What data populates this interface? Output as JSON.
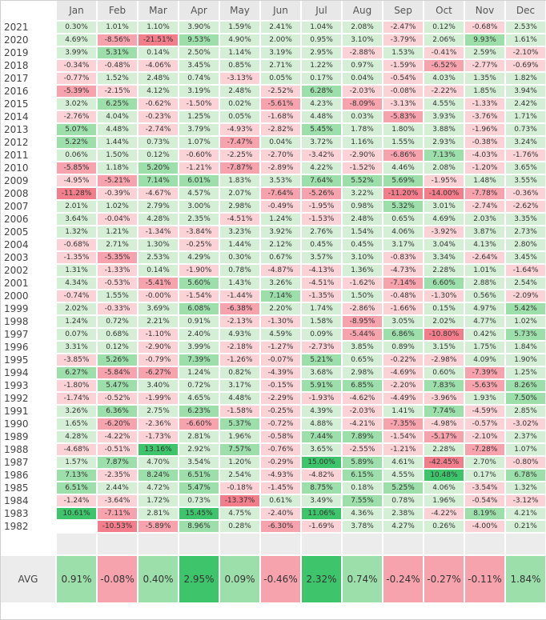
{
  "months": [
    "Jan",
    "Feb",
    "Mar",
    "Apr",
    "May",
    "Jun",
    "Jul",
    "Aug",
    "Sep",
    "Oct",
    "Nov",
    "Dec"
  ],
  "rows": [
    {
      "year": "2021",
      "values": [
        0.3,
        1.01,
        1.1,
        3.9,
        1.59,
        2.41,
        1.04,
        2.08,
        -2.47,
        0.12,
        -0.68,
        2.53
      ]
    },
    {
      "year": "2020",
      "values": [
        4.69,
        -8.56,
        -21.51,
        9.53,
        4.9,
        2.0,
        0.95,
        3.1,
        -3.79,
        2.06,
        9.93,
        1.61
      ]
    },
    {
      "year": "2019",
      "values": [
        3.99,
        5.31,
        0.14,
        2.5,
        1.14,
        3.19,
        2.95,
        -2.88,
        1.53,
        -0.41,
        2.59,
        -2.1
      ]
    },
    {
      "year": "2018",
      "values": [
        -0.34,
        -0.48,
        -4.06,
        3.45,
        0.85,
        2.71,
        1.22,
        0.97,
        -1.59,
        -6.52,
        -2.77,
        -0.69
      ]
    },
    {
      "year": "2017",
      "values": [
        -0.77,
        1.52,
        2.48,
        0.74,
        -3.13,
        0.05,
        0.17,
        0.04,
        -0.54,
        4.03,
        1.35,
        1.82
      ]
    },
    {
      "year": "2016",
      "values": [
        -5.39,
        -2.15,
        4.12,
        3.19,
        2.48,
        -2.52,
        6.28,
        -2.03,
        -0.08,
        -2.22,
        1.85,
        3.94
      ]
    },
    {
      "year": "2015",
      "values": [
        3.02,
        6.25,
        -0.62,
        -1.5,
        0.02,
        -5.61,
        4.23,
        -8.09,
        -3.13,
        4.55,
        -1.33,
        2.42
      ]
    },
    {
      "year": "2014",
      "values": [
        -2.76,
        4.04,
        -0.23,
        1.25,
        0.05,
        -1.68,
        4.48,
        0.03,
        -5.83,
        3.93,
        -3.76,
        1.71
      ]
    },
    {
      "year": "2013",
      "values": [
        5.07,
        4.48,
        -2.74,
        3.79,
        -4.93,
        -2.82,
        5.45,
        1.78,
        1.8,
        3.88,
        -1.96,
        0.73
      ]
    },
    {
      "year": "2012",
      "values": [
        5.22,
        1.44,
        0.73,
        1.07,
        -7.47,
        0.04,
        3.72,
        1.16,
        1.55,
        2.93,
        -0.38,
        3.24
      ]
    },
    {
      "year": "2011",
      "values": [
        0.06,
        1.5,
        0.12,
        -0.6,
        -2.25,
        -2.7,
        -3.42,
        -2.9,
        -6.86,
        7.13,
        -4.03,
        -1.76
      ]
    },
    {
      "year": "2010",
      "values": [
        -5.85,
        1.18,
        5.2,
        -1.21,
        -7.87,
        -2.89,
        4.22,
        -1.52,
        4.46,
        2.08,
        -1.2,
        3.65
      ]
    },
    {
      "year": "2009",
      "values": [
        -4.95,
        -5.21,
        7.14,
        6.01,
        1.83,
        3.53,
        7.64,
        5.52,
        5.69,
        -1.95,
        1.48,
        3.55
      ]
    },
    {
      "year": "2008",
      "values": [
        -11.28,
        -0.39,
        -4.67,
        4.57,
        2.07,
        -7.64,
        -5.26,
        3.22,
        -11.2,
        -14.0,
        -7.78,
        -0.36
      ]
    },
    {
      "year": "2007",
      "values": [
        2.01,
        1.02,
        2.79,
        3.0,
        2.98,
        -0.49,
        -1.95,
        0.98,
        5.32,
        3.01,
        -2.74,
        -2.62
      ]
    },
    {
      "year": "2006",
      "values": [
        3.64,
        -0.04,
        4.28,
        2.35,
        -4.51,
        1.24,
        -1.53,
        2.48,
        0.65,
        4.69,
        2.03,
        3.35
      ]
    },
    {
      "year": "2005",
      "values": [
        1.32,
        1.21,
        -1.34,
        -3.84,
        3.23,
        3.92,
        2.76,
        1.54,
        4.06,
        -3.92,
        3.87,
        2.73
      ]
    },
    {
      "year": "2004",
      "values": [
        -0.68,
        2.71,
        1.3,
        -0.25,
        1.44,
        2.12,
        0.45,
        0.45,
        3.17,
        3.04,
        4.13,
        2.8
      ]
    },
    {
      "year": "2003",
      "values": [
        -1.35,
        -5.35,
        2.53,
        4.29,
        0.3,
        0.67,
        3.57,
        3.1,
        -0.83,
        3.34,
        -2.64,
        3.45
      ]
    },
    {
      "year": "2002",
      "values": [
        1.31,
        -1.33,
        0.14,
        -1.9,
        0.78,
        -4.87,
        -4.13,
        1.36,
        -4.73,
        2.28,
        1.01,
        -1.64
      ]
    },
    {
      "year": "2001",
      "values": [
        4.34,
        -0.53,
        -5.41,
        5.6,
        1.43,
        3.26,
        -4.51,
        -1.62,
        -7.14,
        6.6,
        2.88,
        2.54
      ]
    },
    {
      "year": "2000",
      "values": [
        -0.74,
        1.55,
        -0.0,
        -1.54,
        -1.44,
        7.14,
        -1.35,
        1.5,
        -0.48,
        -1.3,
        0.56,
        -2.09
      ]
    },
    {
      "year": "1999",
      "values": [
        2.02,
        -0.33,
        3.69,
        6.08,
        -6.38,
        2.2,
        1.74,
        -2.86,
        -1.66,
        0.15,
        4.97,
        5.42
      ]
    },
    {
      "year": "1998",
      "values": [
        1.24,
        0.72,
        2.21,
        0.91,
        -2.13,
        -1.3,
        1.58,
        -8.95,
        3.05,
        2.02,
        4.77,
        1.02
      ]
    },
    {
      "year": "1997",
      "values": [
        0.07,
        0.68,
        -1.1,
        2.4,
        4.93,
        4.59,
        0.09,
        -5.44,
        6.86,
        -10.8,
        0.42,
        5.73
      ]
    },
    {
      "year": "1996",
      "values": [
        3.31,
        0.12,
        -2.9,
        3.99,
        -2.18,
        -1.27,
        -2.73,
        3.85,
        0.89,
        3.15,
        1.75,
        1.84
      ]
    },
    {
      "year": "1995",
      "values": [
        -3.85,
        5.26,
        -0.79,
        7.39,
        -1.26,
        -0.07,
        5.21,
        0.65,
        -0.22,
        -2.98,
        4.09,
        1.9
      ]
    },
    {
      "year": "1994",
      "values": [
        6.27,
        -5.84,
        -6.27,
        1.24,
        0.82,
        -4.39,
        3.68,
        2.98,
        -4.69,
        0.6,
        -7.39,
        1.25
      ]
    },
    {
      "year": "1993",
      "values": [
        -1.8,
        5.47,
        3.4,
        0.72,
        3.17,
        -0.15,
        5.91,
        6.85,
        -2.2,
        7.83,
        -5.63,
        8.26
      ]
    },
    {
      "year": "1992",
      "values": [
        -1.74,
        -0.52,
        -1.99,
        4.65,
        4.48,
        -2.29,
        -1.93,
        -4.62,
        -4.49,
        -3.96,
        1.93,
        7.5
      ]
    },
    {
      "year": "1991",
      "values": [
        3.26,
        6.36,
        2.75,
        6.23,
        -1.58,
        -0.25,
        4.39,
        -2.03,
        1.41,
        7.74,
        -4.59,
        2.85
      ]
    },
    {
      "year": "1990",
      "values": [
        1.65,
        -6.2,
        -2.36,
        -6.6,
        5.37,
        -0.72,
        4.88,
        -4.21,
        -7.35,
        -4.98,
        -0.57,
        -3.02
      ]
    },
    {
      "year": "1989",
      "values": [
        4.28,
        -4.22,
        -1.73,
        2.81,
        1.96,
        -0.58,
        7.44,
        7.89,
        -1.54,
        -5.17,
        -2.1,
        2.37
      ]
    },
    {
      "year": "1988",
      "values": [
        -4.68,
        -0.51,
        13.16,
        2.92,
        7.57,
        -0.76,
        3.65,
        -2.55,
        -1.21,
        2.28,
        -7.28,
        1.07
      ]
    },
    {
      "year": "1987",
      "values": [
        1.57,
        7.87,
        4.7,
        3.54,
        1.2,
        -0.29,
        15.0,
        5.89,
        4.61,
        -42.45,
        2.7,
        -0.8
      ]
    },
    {
      "year": "1986",
      "values": [
        7.13,
        -2.35,
        8.24,
        6.51,
        2.54,
        -4.93,
        -4.82,
        6.15,
        4.55,
        10.48,
        0.17,
        6.78
      ]
    },
    {
      "year": "1985",
      "values": [
        6.51,
        2.44,
        4.72,
        5.47,
        -0.18,
        -1.45,
        8.75,
        0.18,
        5.25,
        4.06,
        -3.54,
        1.32
      ]
    },
    {
      "year": "1984",
      "values": [
        -1.24,
        -3.64,
        1.72,
        0.73,
        -13.37,
        0.61,
        3.49,
        7.55,
        0.78,
        1.96,
        -0.54,
        -3.12
      ]
    },
    {
      "year": "1983",
      "values": [
        10.61,
        -7.11,
        2.81,
        15.45,
        4.75,
        -2.4,
        11.06,
        4.36,
        2.38,
        -4.22,
        8.19,
        4.21
      ]
    },
    {
      "year": "1982",
      "values": [
        null,
        -10.53,
        -5.89,
        8.96,
        0.28,
        -6.3,
        -1.69,
        3.78,
        4.27,
        0.26,
        -4.0,
        0.21
      ]
    }
  ],
  "avg": {
    "label": "AVG",
    "values": [
      0.91,
      -0.08,
      0.4,
      2.95,
      0.09,
      -0.46,
      2.32,
      0.74,
      -0.24,
      -0.27,
      -0.11,
      1.84
    ]
  },
  "colors": {
    "pos_light": "#d4efd6",
    "pos_mid": "#9ddfaa",
    "pos_strong": "#3ec46a",
    "neg_light": "#fbd3d7",
    "neg_mid": "#f7a3ad",
    "neg_strong": "#f27e8b",
    "header_bg": "#e8e8e8"
  }
}
